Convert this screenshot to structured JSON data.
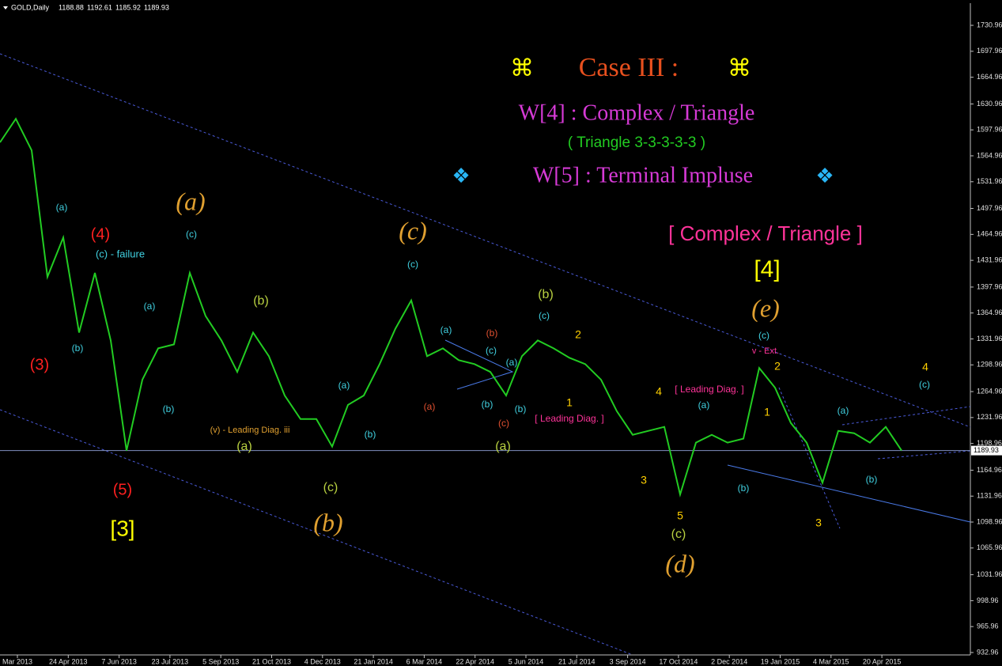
{
  "chart_data": {
    "type": "line",
    "title": "GOLD,Daily",
    "ohlc": [
      1188.88,
      1192.61,
      1185.92,
      1189.93
    ],
    "color": "#22cc22",
    "last_price": 1189.93,
    "values": [
      1582,
      1612,
      1572,
      1411,
      1461,
      1340,
      1416,
      1330,
      1190,
      1280,
      1320,
      1325,
      1416,
      1361,
      1330,
      1290,
      1340,
      1310,
      1260,
      1230,
      1230,
      1195,
      1248,
      1260,
      1300,
      1345,
      1381,
      1310,
      1320,
      1305,
      1300,
      1290,
      1260,
      1310,
      1330,
      1320,
      1308,
      1300,
      1280,
      1240,
      1210,
      1215,
      1220,
      1134,
      1200,
      1210,
      1200,
      1205,
      1295,
      1270,
      1225,
      1200,
      1149,
      1215,
      1212,
      1200,
      1220,
      1190
    ],
    "x_labels": [
      "Mar 2013",
      "24 Apr 2013",
      "7 Jun 2013",
      "23 Jul 2013",
      "5 Sep 2013",
      "21 Oct 2013",
      "4 Dec 2013",
      "21 Jan 2014",
      "6 Mar 2014",
      "22 Apr 2014",
      "5 Jun 2014",
      "21 Jul 2014",
      "3 Sep 2014",
      "17 Oct 2014",
      "2 Dec 2014",
      "19 Jan 2015",
      "4 Mar 2015",
      "20 Apr 2015"
    ],
    "ylim": [
      929.9,
      1763.2
    ],
    "yticks": [
      932.96,
      965.96,
      998.96,
      1031.96,
      1065.96,
      1098.96,
      1131.96,
      1164.96,
      1198.96,
      1231.96,
      1264.96,
      1298.96,
      1331.96,
      1364.96,
      1397.96,
      1431.96,
      1464.96,
      1497.96,
      1531.96,
      1564.96,
      1597.96,
      1630.96,
      1664.96,
      1697.96,
      1730.96
    ],
    "annotations": [
      {
        "text": "⌘",
        "color": "#ffff00"
      },
      {
        "text": "Case III :",
        "color": "#e8501e"
      },
      {
        "text": "⌘",
        "color": "#ffff00"
      },
      {
        "text": "W[4] : Complex / Triangle",
        "color": "#d63ad6"
      },
      {
        "text": "( Triangle 3-3-3-3-3 )",
        "color": "#22cc22"
      },
      {
        "text": "❖",
        "color": "#29b6f6"
      },
      {
        "text": "W[5] : Terminal Impluse",
        "color": "#d63ad6"
      },
      {
        "text": "❖",
        "color": "#29b6f6"
      },
      {
        "text": "[ Complex / Triangle ]",
        "color": "#ff3399"
      },
      {
        "text": "[4]",
        "color": "#ffff00"
      },
      {
        "text": "(e)",
        "color": "#e0a030"
      },
      {
        "text": "(a)",
        "color": "#e0a030"
      },
      {
        "text": "(c)",
        "color": "#e0a030"
      },
      {
        "text": "(b)",
        "color": "#e0a030"
      },
      {
        "text": "(d)",
        "color": "#e0a030"
      },
      {
        "text": "[3]",
        "color": "#ffff00"
      },
      {
        "text": "(5)",
        "color": "#ff2020"
      },
      {
        "text": "(4)",
        "color": "#ff2020"
      },
      {
        "text": "(3)",
        "color": "#ff2020"
      },
      {
        "text": "(c) - failure",
        "color": "#40d0e0"
      },
      {
        "text": "(a)",
        "color": "#40d0e0"
      },
      {
        "text": "(b)",
        "color": "#40d0e0"
      },
      {
        "text": "(c)",
        "color": "#40d0e0"
      },
      {
        "text": "(a)",
        "color": "#40d0e0"
      },
      {
        "text": "(b)",
        "color": "#40d0e0"
      },
      {
        "text": "(a)",
        "color": "#40d0e0"
      },
      {
        "text": "(b)",
        "color": "#40d0e0"
      },
      {
        "text": "(c)",
        "color": "#40d0e0"
      },
      {
        "text": "(a)",
        "color": "#40d0e0"
      },
      {
        "text": "(c)",
        "color": "#40d0e0"
      },
      {
        "text": "(b)",
        "color": "#40d0e0"
      },
      {
        "text": "(a)",
        "color": "#40d0e0"
      },
      {
        "text": "(b)",
        "color": "#40d0e0"
      },
      {
        "text": "(c)",
        "color": "#40d0e0"
      },
      {
        "text": "(a)",
        "color": "#40d0e0"
      },
      {
        "text": "(b)",
        "color": "#40d0e0"
      },
      {
        "text": "(c)",
        "color": "#40d0e0"
      },
      {
        "text": "(a)",
        "color": "#40d0e0"
      },
      {
        "text": "(b)",
        "color": "#40d0e0"
      },
      {
        "text": "(c)",
        "color": "#40d0e0"
      },
      {
        "text": "(b)",
        "color": "#b8d040"
      },
      {
        "text": "(a)",
        "color": "#b8d040"
      },
      {
        "text": "(c)",
        "color": "#b8d040"
      },
      {
        "text": "(b)",
        "color": "#b8d040"
      },
      {
        "text": "(a)",
        "color": "#b8d040"
      },
      {
        "text": "(c)",
        "color": "#b8d040"
      },
      {
        "text": "(a)",
        "color": "#e05030"
      },
      {
        "text": "(c)",
        "color": "#e05030"
      },
      {
        "text": "(b)",
        "color": "#e05030"
      },
      {
        "text": "[ Leading Diag. ]",
        "color": "#ff3399"
      },
      {
        "text": "[ Leading Diag. ]",
        "color": "#ff3399"
      },
      {
        "text": "(v) - Leading Diag. iii",
        "color": "#e0a030"
      },
      {
        "text": "v - Ext.",
        "color": "#ff3399"
      },
      {
        "text": "4",
        "color": "#ffd000"
      },
      {
        "text": "3",
        "color": "#ffd000"
      },
      {
        "text": "5",
        "color": "#ffd000"
      },
      {
        "text": "2",
        "color": "#ffd000"
      },
      {
        "text": "1",
        "color": "#ffd000"
      },
      {
        "text": "2",
        "color": "#ffd000"
      },
      {
        "text": "1",
        "color": "#ffd000"
      },
      {
        "text": "3",
        "color": "#ffd000"
      },
      {
        "text": "4",
        "color": "#ffd000"
      }
    ]
  }
}
